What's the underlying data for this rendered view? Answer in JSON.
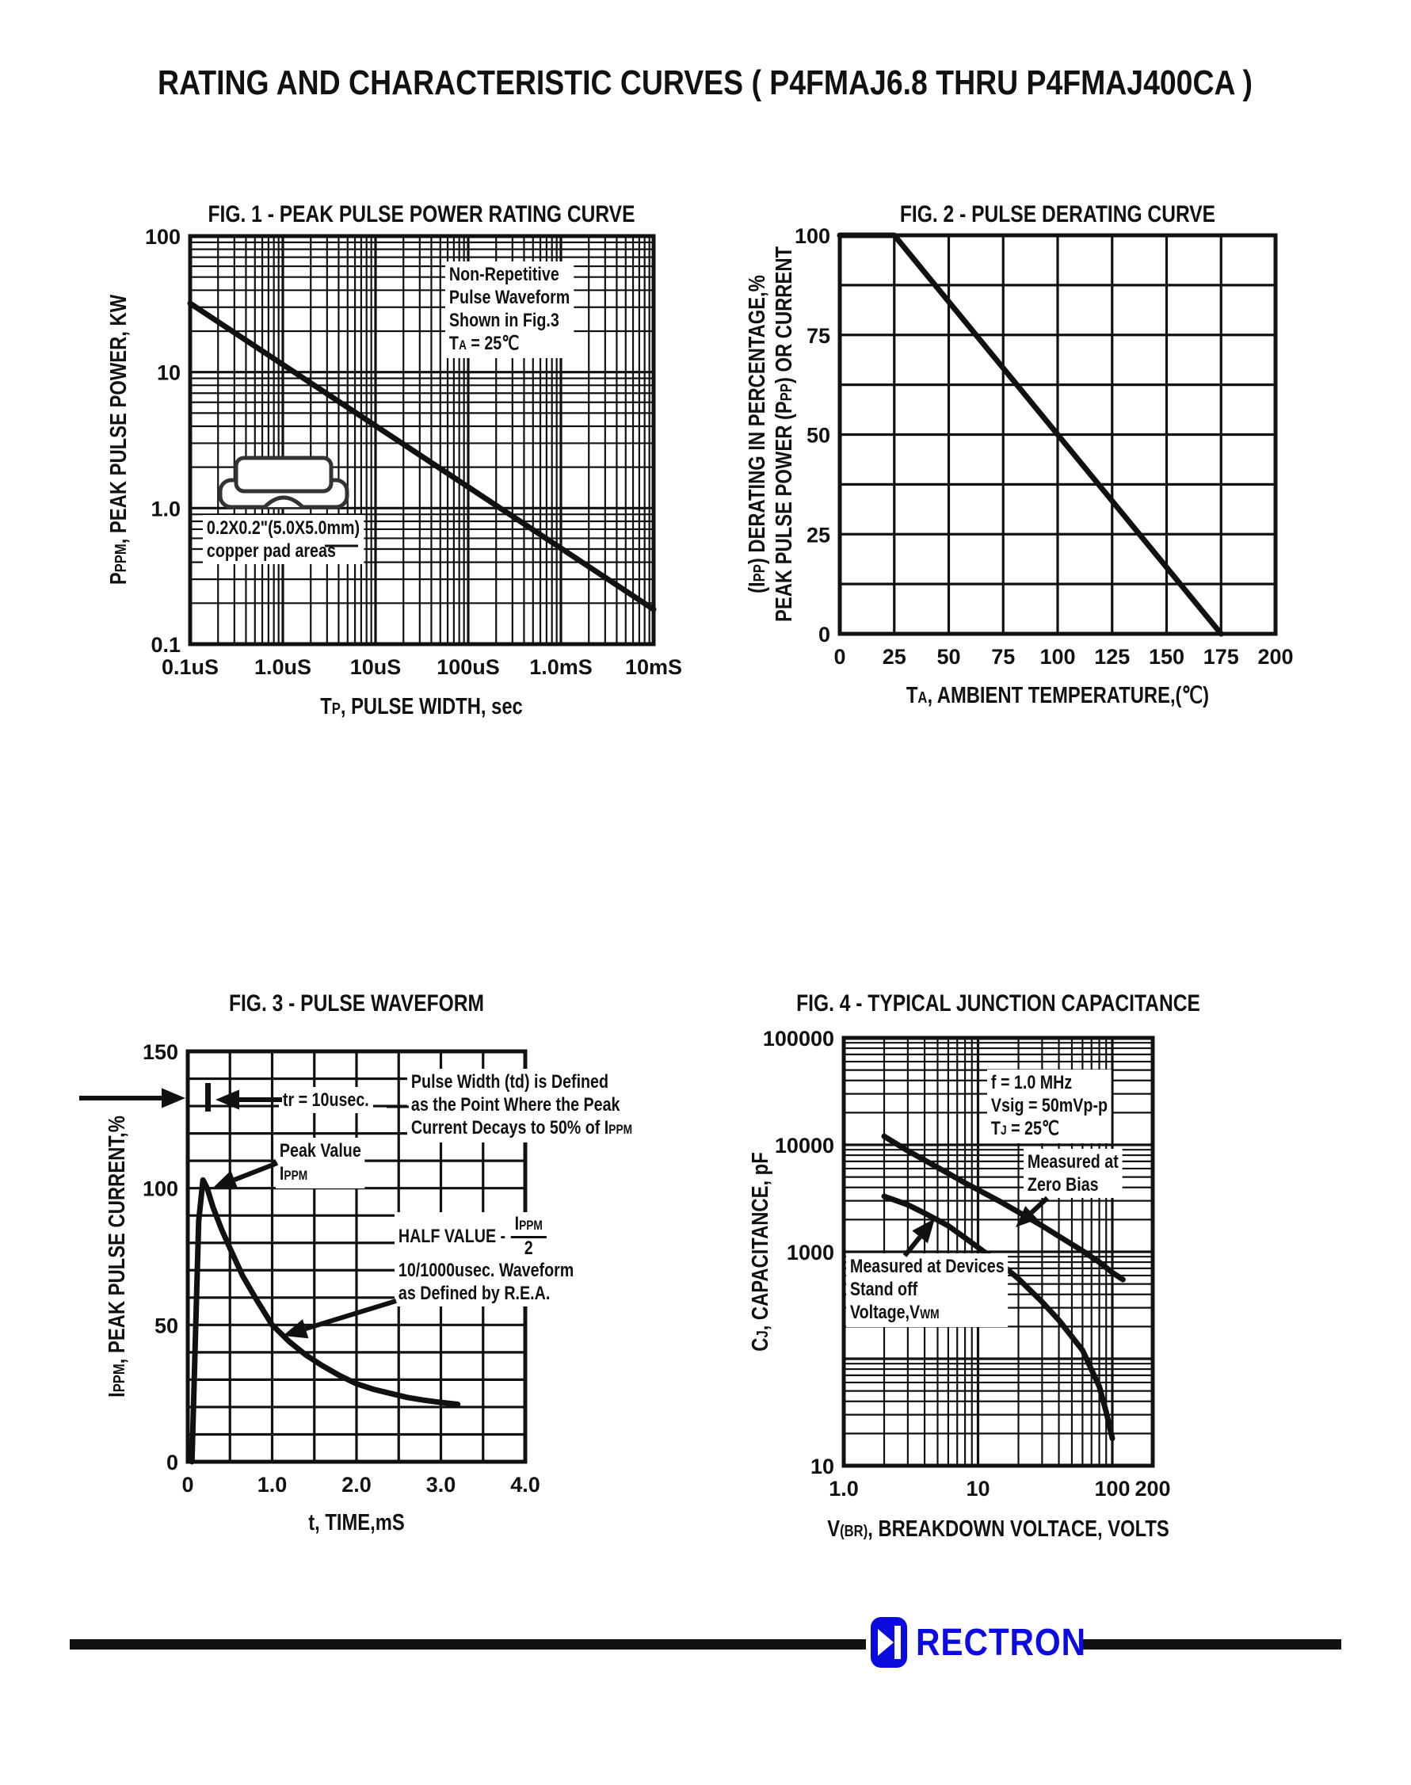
{
  "page": {
    "title": "RATING AND CHARACTERISTIC CURVES ( P4FMAJ6.8 THRU P4FMAJ400CA )",
    "ink_color": "#111111",
    "background": "#ffffff"
  },
  "footer": {
    "brand": "RECTRON",
    "brand_color": "#0b0be0",
    "icon": "diode-symbol-icon"
  },
  "figures": [
    {
      "title": "FIG. 1 - PEAK PULSE POWER RATING CURVE",
      "x_label": [
        [
          "T",
          ""
        ],
        [
          "P",
          "sub"
        ],
        [
          ", PULSE WIDTH, sec",
          ""
        ]
      ],
      "y_label": [
        [
          "P",
          ""
        ],
        [
          "PPM",
          "sub"
        ],
        [
          ", PEAK PULSE POWER, KW",
          ""
        ]
      ],
      "note_lines": [
        [
          [
            "Non-Repetitive",
            ""
          ]
        ],
        [
          [
            "Pulse Waveform",
            ""
          ]
        ],
        [
          [
            "Shown in Fig.3",
            ""
          ]
        ],
        [
          [
            "T",
            ""
          ],
          [
            "A",
            "sub"
          ],
          [
            " = 25℃",
            ""
          ]
        ]
      ],
      "pad_note_lines": [
        [
          [
            "0.2X0.2\"(5.0X5.0mm)",
            ""
          ]
        ],
        [
          [
            "copper pad areas",
            ""
          ]
        ]
      ]
    },
    {
      "title": "FIG. 2 - PULSE DERATING CURVE",
      "x_label": [
        [
          "T",
          ""
        ],
        [
          "A",
          "sub"
        ],
        [
          ", AMBIENT TEMPERATURE,(℃)",
          ""
        ]
      ],
      "y_label_line1": [
        [
          "(I",
          ""
        ],
        [
          "PP",
          "sub"
        ],
        [
          ") DERATING IN PERCENTAGE,%",
          ""
        ]
      ],
      "y_label_line2": [
        [
          "PEAK PULSE POWER (P",
          ""
        ],
        [
          "PP",
          "sub"
        ],
        [
          ") OR CURRENT",
          ""
        ]
      ]
    },
    {
      "title": "FIG. 3 - PULSE WAVEFORM",
      "x_label": [
        [
          "t, TIME,mS",
          ""
        ]
      ],
      "y_label": [
        [
          "I",
          ""
        ],
        [
          "PPM",
          "sub"
        ],
        [
          ", PEAK PULSE CURRENT,%",
          ""
        ]
      ],
      "tr_label": [
        [
          "tr = 10usec.",
          ""
        ]
      ],
      "peak_lines": [
        [
          [
            "Peak Value",
            ""
          ]
        ],
        [
          [
            "I",
            ""
          ],
          [
            "PPM",
            "sub"
          ]
        ]
      ],
      "pw_lines": [
        [
          [
            "Pulse Width (td) is Defined",
            ""
          ]
        ],
        [
          [
            "as the Point Where the Peak",
            ""
          ]
        ],
        [
          [
            "Current Decays to 50% of I",
            ""
          ],
          [
            "PPM",
            "sub"
          ]
        ]
      ],
      "half_value_prefix": [
        [
          "HALF VALUE - ",
          ""
        ]
      ],
      "half_frac_num": [
        [
          "I",
          ""
        ],
        [
          "PPM",
          "sub"
        ]
      ],
      "half_frac_den": "2",
      "rea_lines": [
        [
          [
            "10/1000usec. Waveform",
            ""
          ]
        ],
        [
          [
            "as Defined by R.E.A.",
            ""
          ]
        ]
      ]
    },
    {
      "title": "FIG. 4 - TYPICAL JUNCTION CAPACITANCE",
      "x_label": [
        [
          "V",
          ""
        ],
        [
          "(BR)",
          "sub"
        ],
        [
          ", BREAKDOWN VOLTACE, VOLTS",
          ""
        ]
      ],
      "y_label": [
        [
          "C",
          ""
        ],
        [
          "J",
          "sub"
        ],
        [
          ", CAPACITANCE, pF",
          ""
        ]
      ],
      "cond_lines": [
        [
          [
            "f = 1.0 MHz",
            ""
          ]
        ],
        [
          [
            "Vsig = 50mVp-p",
            ""
          ]
        ],
        [
          [
            "T",
            ""
          ],
          [
            "J",
            "sub"
          ],
          [
            " = 25℃",
            ""
          ]
        ]
      ],
      "zero_bias_lines": [
        [
          [
            "Measured at",
            ""
          ]
        ],
        [
          [
            "Zero Bias",
            ""
          ]
        ]
      ],
      "standoff_lines": [
        [
          [
            "Measured at Devices",
            ""
          ]
        ],
        [
          [
            "Stand off",
            ""
          ]
        ],
        [
          [
            "Voltage,V",
            ""
          ],
          [
            "WM",
            "sub"
          ]
        ]
      ]
    }
  ],
  "chart_data": [
    {
      "type": "line",
      "title": "FIG. 1 - PEAK PULSE POWER RATING CURVE",
      "xlabel": "TP, PULSE WIDTH, sec",
      "ylabel": "PPPM, PEAK PULSE POWER, KW",
      "x_scale": "log",
      "y_scale": "log",
      "x_range": [
        1e-07,
        0.01
      ],
      "y_range": [
        0.1,
        100
      ],
      "grid": "log minor+major, full box",
      "legend": "none",
      "x_ticks": [
        {
          "v": 1e-07,
          "l": "0.1uS"
        },
        {
          "v": 1e-06,
          "l": "1.0uS"
        },
        {
          "v": 1e-05,
          "l": "10uS"
        },
        {
          "v": 0.0001,
          "l": "100uS"
        },
        {
          "v": 0.001,
          "l": "1.0mS"
        },
        {
          "v": 0.01,
          "l": "10mS"
        }
      ],
      "y_ticks": [
        {
          "v": 100,
          "l": "100"
        },
        {
          "v": 10,
          "l": "10"
        },
        {
          "v": 1,
          "l": "1.0"
        },
        {
          "v": 0.1,
          "l": "0.1"
        }
      ],
      "series": [
        {
          "name": "peak pulse power vs pulse width",
          "points": [
            [
              1e-07,
              32
            ],
            [
              0.01,
              0.18
            ]
          ]
        }
      ]
    },
    {
      "type": "line",
      "title": "FIG. 2 - PULSE DERATING CURVE",
      "xlabel": "TA, AMBIENT TEMPERATURE,(℃)",
      "ylabel": "(IPP) DERATING IN PERCENTAGE,% PEAK PULSE POWER (PPP) OR CURRENT",
      "x_scale": "linear",
      "y_scale": "linear",
      "x_range": [
        0,
        200
      ],
      "y_range": [
        0,
        100
      ],
      "x_div": 8,
      "y_div": 8,
      "grid": "linear 8x8, full box",
      "legend": "none",
      "x_ticks": [
        {
          "v": 0,
          "l": "0"
        },
        {
          "v": 25,
          "l": "25"
        },
        {
          "v": 50,
          "l": "50"
        },
        {
          "v": 75,
          "l": "75"
        },
        {
          "v": 100,
          "l": "100"
        },
        {
          "v": 125,
          "l": "125"
        },
        {
          "v": 150,
          "l": "150"
        },
        {
          "v": 175,
          "l": "175"
        },
        {
          "v": 200,
          "l": "200"
        }
      ],
      "y_ticks": [
        {
          "v": 100,
          "l": "100"
        },
        {
          "v": 75,
          "l": "75"
        },
        {
          "v": 50,
          "l": "50"
        },
        {
          "v": 25,
          "l": "25"
        },
        {
          "v": 0,
          "l": "0"
        }
      ],
      "series": [
        {
          "name": "derating percentage vs ambient temperature",
          "points": [
            [
              0,
              100
            ],
            [
              25,
              100
            ],
            [
              175,
              0
            ]
          ]
        }
      ]
    },
    {
      "type": "line",
      "title": "FIG. 3 - PULSE WAVEFORM",
      "xlabel": "t, TIME,mS",
      "ylabel": "IPPM, PEAK PULSE CURRENT,%",
      "x_scale": "linear",
      "y_scale": "linear",
      "x_range": [
        0,
        4
      ],
      "y_range": [
        0,
        150
      ],
      "x_div": 8,
      "y_div": 15,
      "grid": "linear 8x15, full box",
      "legend": "none",
      "x_ticks": [
        {
          "v": 0,
          "l": "0"
        },
        {
          "v": 1,
          "l": "1.0"
        },
        {
          "v": 2,
          "l": "2.0"
        },
        {
          "v": 3,
          "l": "3.0"
        },
        {
          "v": 4,
          "l": "4.0"
        }
      ],
      "y_ticks": [
        {
          "v": 150,
          "l": "150"
        },
        {
          "v": 100,
          "l": "100"
        },
        {
          "v": 50,
          "l": "50"
        },
        {
          "v": 0,
          "l": "0"
        }
      ],
      "series": [
        {
          "name": "10/1000usec pulse waveform",
          "points": [
            [
              0.05,
              0
            ],
            [
              0.09,
              45
            ],
            [
              0.13,
              88
            ],
            [
              0.18,
              103
            ],
            [
              0.23,
              100
            ],
            [
              0.3,
              93
            ],
            [
              0.4,
              85
            ],
            [
              0.5,
              78
            ],
            [
              0.65,
              68
            ],
            [
              0.8,
              60
            ],
            [
              1,
              50
            ],
            [
              1.2,
              44
            ],
            [
              1.4,
              39
            ],
            [
              1.6,
              35
            ],
            [
              1.8,
              31.5
            ],
            [
              2,
              28.5
            ],
            [
              2.2,
              26.5
            ],
            [
              2.4,
              25
            ],
            [
              2.6,
              23.5
            ],
            [
              2.8,
              22.5
            ],
            [
              3,
              21.7
            ],
            [
              3.2,
              21
            ]
          ]
        }
      ]
    },
    {
      "type": "line",
      "title": "FIG. 4 - TYPICAL JUNCTION CAPACITANCE",
      "xlabel": "V(BR), BREAKDOWN VOLTACE, VOLTS",
      "ylabel": "CJ, CAPACITANCE, pF",
      "x_scale": "log",
      "y_scale": "log",
      "x_range": [
        1,
        200
      ],
      "y_range": [
        10,
        100000
      ],
      "grid": "log minor+major, full box",
      "legend": "none",
      "x_ticks": [
        {
          "v": 1,
          "l": "1.0"
        },
        {
          "v": 10,
          "l": "10"
        },
        {
          "v": 100,
          "l": "100"
        },
        {
          "v": 200,
          "l": "200"
        }
      ],
      "y_ticks": [
        {
          "v": 100000,
          "l": "100000"
        },
        {
          "v": 10000,
          "l": "10000"
        },
        {
          "v": 1000,
          "l": "1000"
        },
        {
          "v": 10,
          "l": "10"
        }
      ],
      "series": [
        {
          "name": "Measured at Zero Bias",
          "points": [
            [
              2,
              12000
            ],
            [
              3,
              8800
            ],
            [
              4,
              7200
            ],
            [
              6,
              5400
            ],
            [
              8,
              4400
            ],
            [
              10,
              3800
            ],
            [
              15,
              2900
            ],
            [
              20,
              2350
            ],
            [
              30,
              1750
            ],
            [
              40,
              1400
            ],
            [
              60,
              1020
            ],
            [
              80,
              800
            ],
            [
              100,
              640
            ],
            [
              120,
              550
            ]
          ]
        },
        {
          "name": "Measured at Devices Stand off Voltage, VWM",
          "points": [
            [
              2,
              3300
            ],
            [
              3,
              2750
            ],
            [
              4,
              2300
            ],
            [
              6,
              1750
            ],
            [
              8,
              1350
            ],
            [
              10,
              1100
            ],
            [
              15,
              760
            ],
            [
              20,
              560
            ],
            [
              30,
              340
            ],
            [
              40,
              230
            ],
            [
              60,
              120
            ],
            [
              80,
              55
            ],
            [
              90,
              32
            ],
            [
              100,
              18
            ]
          ]
        }
      ]
    }
  ]
}
